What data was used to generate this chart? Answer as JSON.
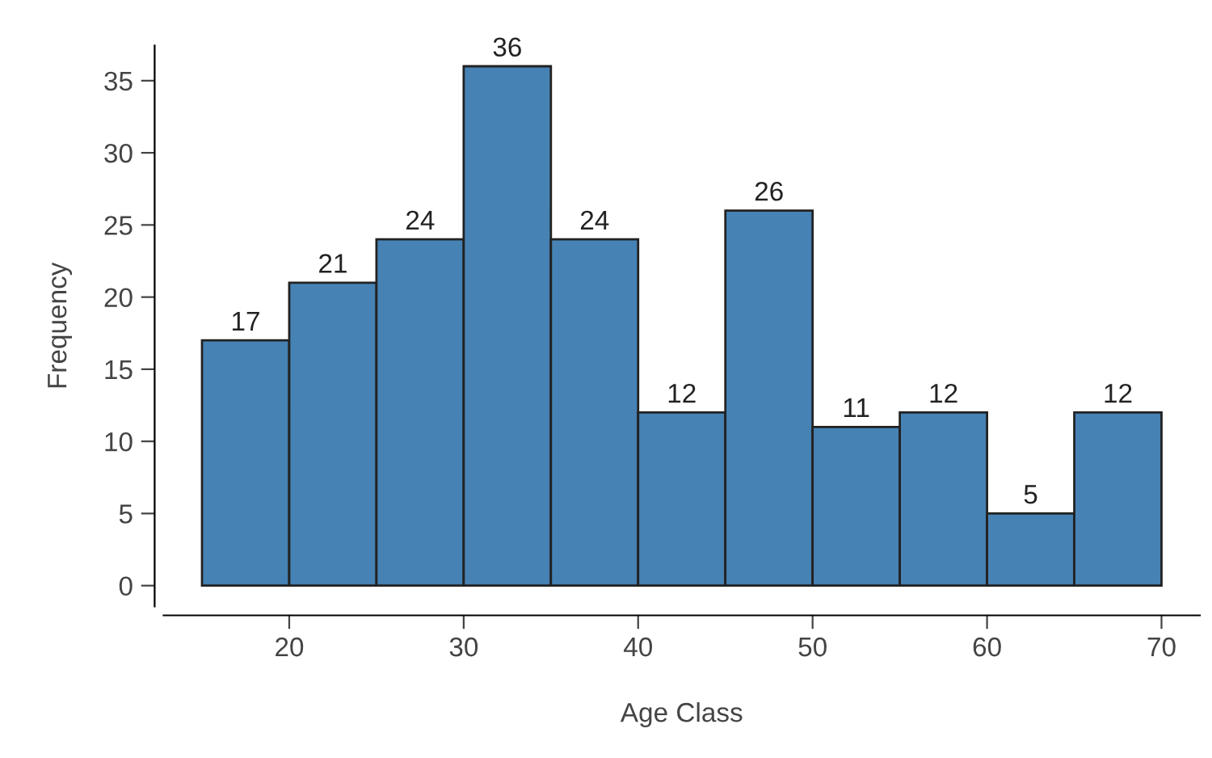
{
  "chart_data": {
    "type": "histogram",
    "xlabel": "Age Class",
    "ylabel": "Frequency",
    "bins": [
      15,
      20,
      25,
      30,
      35,
      40,
      45,
      50,
      55,
      60,
      65,
      70
    ],
    "values": [
      17,
      21,
      24,
      36,
      24,
      12,
      26,
      11,
      12,
      5,
      12
    ],
    "color": "#4682b4",
    "data_labels": true,
    "xlim": [
      12.8,
      72.2
    ],
    "ylim": [
      -1.44,
      37.44
    ],
    "xticks": [
      20,
      30,
      40,
      50,
      60,
      70
    ],
    "yticks": [
      0,
      5,
      10,
      15,
      20,
      25,
      30,
      35
    ],
    "grid": false
  }
}
